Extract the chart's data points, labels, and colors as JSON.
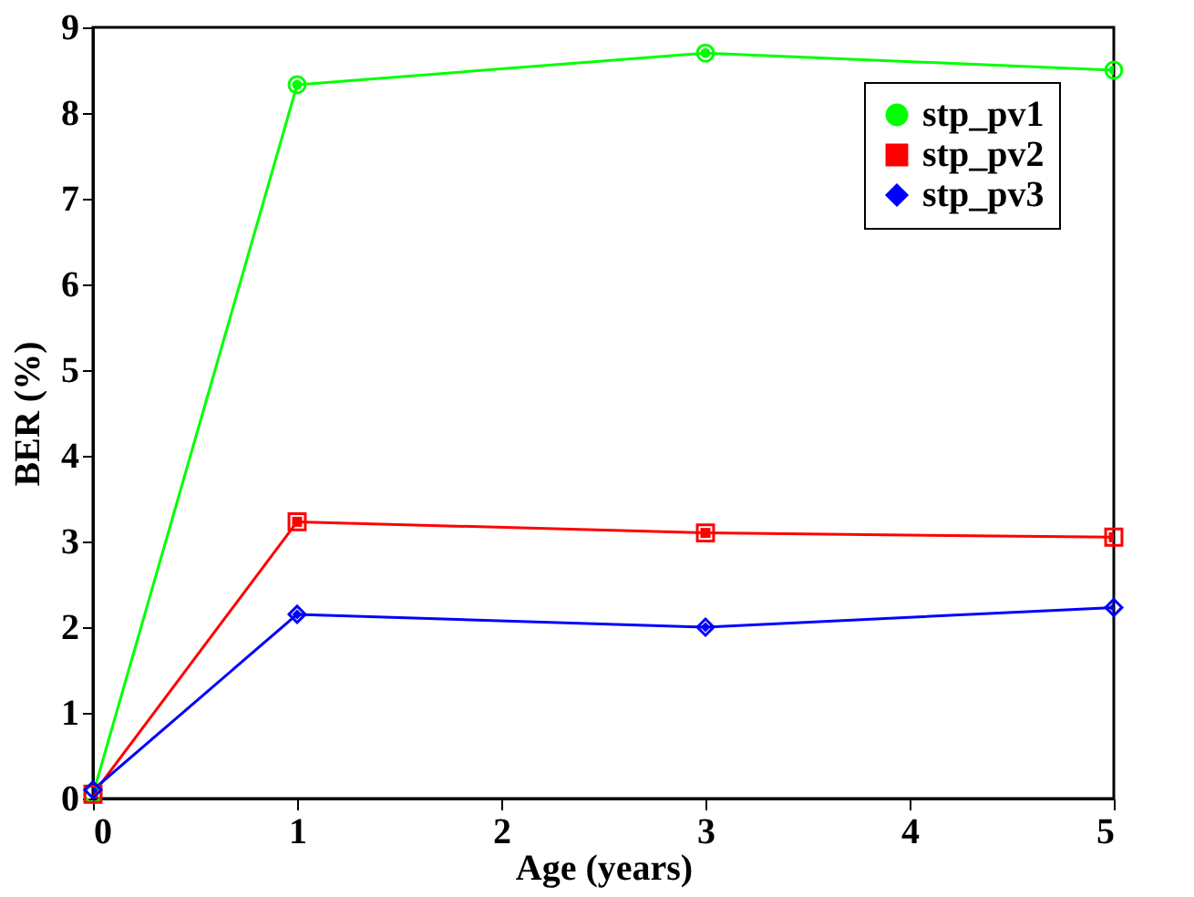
{
  "chart_data": {
    "type": "line",
    "xlabel": "Age (years)",
    "ylabel": "BER (%)",
    "x": [
      0,
      1,
      3,
      5
    ],
    "series": [
      {
        "name": "stp_pv1",
        "color": "#00ff00",
        "marker": "circle",
        "values": [
          0.05,
          8.33,
          8.7,
          8.5
        ]
      },
      {
        "name": "stp_pv2",
        "color": "#ff0000",
        "marker": "square",
        "values": [
          0.05,
          3.23,
          3.1,
          3.05
        ]
      },
      {
        "name": "stp_pv3",
        "color": "#0000ff",
        "marker": "diamond",
        "values": [
          0.1,
          2.15,
          2.0,
          2.23
        ]
      }
    ],
    "xlim": [
      0,
      5
    ],
    "xticks": [
      0,
      1,
      2,
      3,
      4,
      5
    ],
    "ylim": [
      0,
      9
    ],
    "yticks": [
      0,
      1,
      2,
      3,
      4,
      5,
      6,
      7,
      8,
      9
    ],
    "grid": false,
    "legend": "top right",
    "line_style": "solid"
  }
}
